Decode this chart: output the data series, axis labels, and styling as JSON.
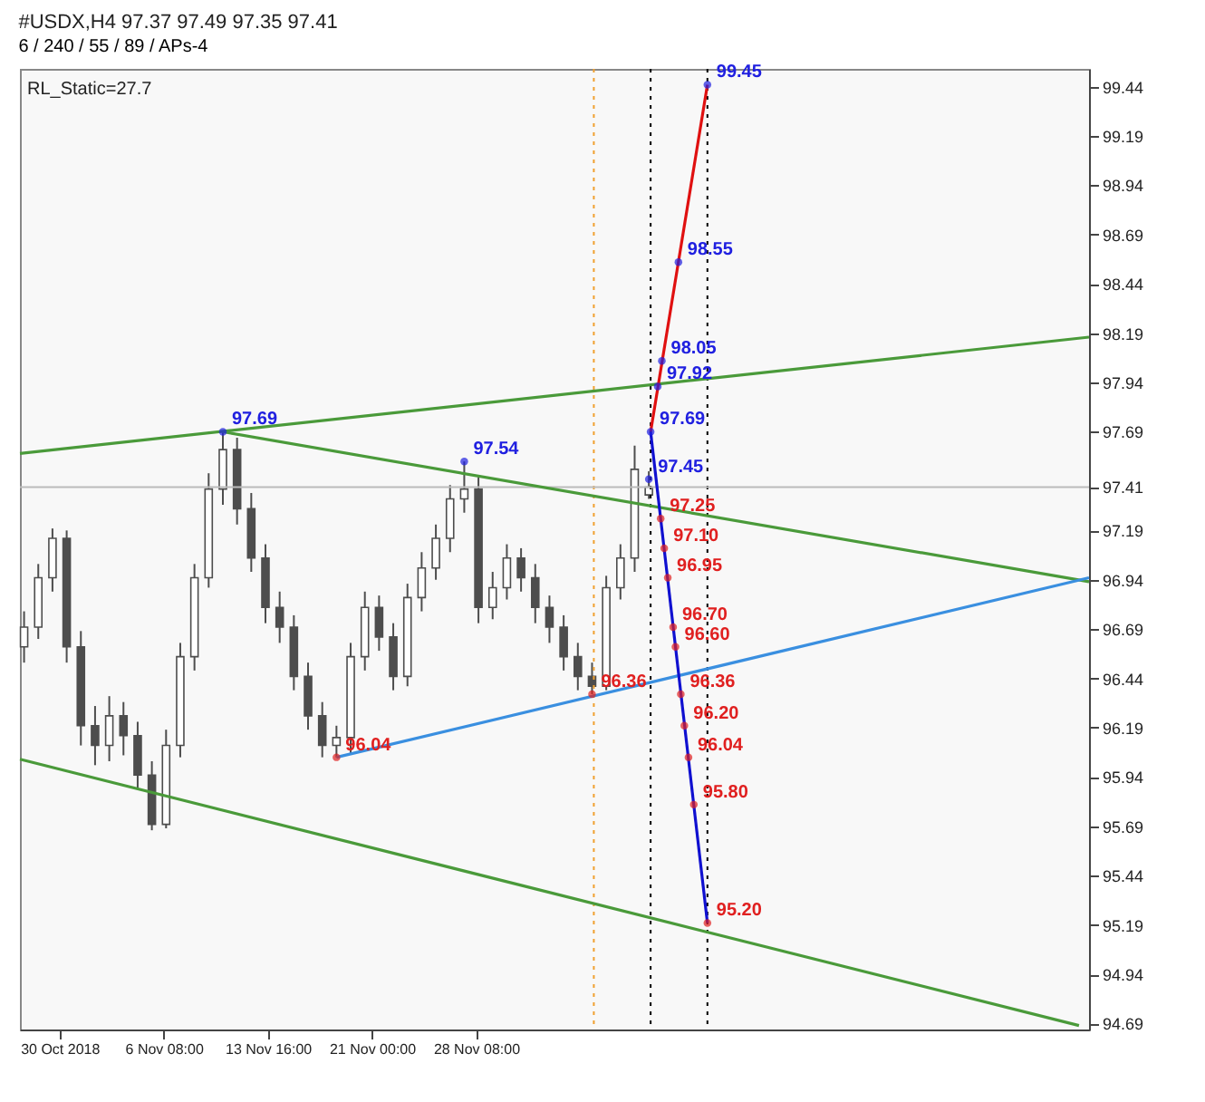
{
  "chart_data": {
    "type": "candlestick",
    "title": "#USDX,H4  97.37 97.49 97.35 97.41",
    "subtitle": "6 / 240 / 55 / 89 / APs-4",
    "annotations": [
      "RL_Static=27.7"
    ],
    "color": "#4d4d4d",
    "x": [
      "2018-10-27T12:00",
      "2018-10-28T12:00",
      "2018-10-29T12:00",
      "2018-10-30T12:00",
      "2018-10-31T12:00",
      "2018-11-01T12:00",
      "2018-11-02T12:00",
      "2018-11-03T12:00",
      "2018-11-04T12:00",
      "2018-11-05T12:00",
      "2018-11-06T12:00",
      "2018-11-07T12:00",
      "2018-11-08T12:00",
      "2018-11-09T12:00",
      "2018-11-10T12:00",
      "2018-11-11T12:00",
      "2018-11-12T12:00",
      "2018-11-13T12:00",
      "2018-11-14T12:00",
      "2018-11-15T12:00",
      "2018-11-16T12:00",
      "2018-11-17T12:00",
      "2018-11-18T12:00",
      "2018-11-19T12:00",
      "2018-11-20T12:00",
      "2018-11-21T12:00",
      "2018-11-22T12:00",
      "2018-11-23T12:00",
      "2018-11-24T12:00",
      "2018-11-25T12:00",
      "2018-11-26T12:00",
      "2018-11-27T12:00",
      "2018-11-28T12:00",
      "2018-11-29T12:00",
      "2018-11-30T12:00",
      "2018-12-01T12:00",
      "2018-12-02T12:00",
      "2018-12-03T12:00",
      "2018-12-04T12:00",
      "2018-12-05T12:00",
      "2018-12-06T12:00",
      "2018-12-07T12:00",
      "2018-12-08T12:00",
      "2018-12-09T12:00",
      "2018-12-10T12:00"
    ],
    "ohlc": [
      [
        96.6,
        96.78,
        96.52,
        96.7
      ],
      [
        96.7,
        97.02,
        96.64,
        96.95
      ],
      [
        96.95,
        97.2,
        96.88,
        97.15
      ],
      [
        97.15,
        97.19,
        96.52,
        96.6
      ],
      [
        96.6,
        96.68,
        96.1,
        96.2
      ],
      [
        96.2,
        96.3,
        96.0,
        96.1
      ],
      [
        96.1,
        96.35,
        96.02,
        96.25
      ],
      [
        96.25,
        96.32,
        96.05,
        96.15
      ],
      [
        96.15,
        96.22,
        95.88,
        95.95
      ],
      [
        95.95,
        96.02,
        95.67,
        95.7
      ],
      [
        95.7,
        96.18,
        95.68,
        96.1
      ],
      [
        96.1,
        96.62,
        96.04,
        96.55
      ],
      [
        96.55,
        97.02,
        96.48,
        96.95
      ],
      [
        96.95,
        97.48,
        96.9,
        97.4
      ],
      [
        97.4,
        97.69,
        97.32,
        97.6
      ],
      [
        97.6,
        97.66,
        97.22,
        97.3
      ],
      [
        97.3,
        97.38,
        96.98,
        97.05
      ],
      [
        97.05,
        97.12,
        96.72,
        96.8
      ],
      [
        96.8,
        96.88,
        96.62,
        96.7
      ],
      [
        96.7,
        96.76,
        96.38,
        96.45
      ],
      [
        96.45,
        96.52,
        96.18,
        96.25
      ],
      [
        96.25,
        96.32,
        96.04,
        96.1
      ],
      [
        96.1,
        96.2,
        96.04,
        96.14
      ],
      [
        96.14,
        96.62,
        96.06,
        96.55
      ],
      [
        96.55,
        96.88,
        96.48,
        96.8
      ],
      [
        96.8,
        96.86,
        96.58,
        96.65
      ],
      [
        96.65,
        96.72,
        96.38,
        96.45
      ],
      [
        96.45,
        96.92,
        96.4,
        96.85
      ],
      [
        96.85,
        97.08,
        96.78,
        97.0
      ],
      [
        97.0,
        97.22,
        96.94,
        97.15
      ],
      [
        97.15,
        97.42,
        97.08,
        97.35
      ],
      [
        97.35,
        97.54,
        97.28,
        97.4
      ],
      [
        97.4,
        97.46,
        96.72,
        96.8
      ],
      [
        96.8,
        96.98,
        96.74,
        96.9
      ],
      [
        96.9,
        97.12,
        96.84,
        97.05
      ],
      [
        97.05,
        97.1,
        96.88,
        96.95
      ],
      [
        96.95,
        97.02,
        96.72,
        96.8
      ],
      [
        96.8,
        96.86,
        96.62,
        96.7
      ],
      [
        96.7,
        96.76,
        96.48,
        96.55
      ],
      [
        96.55,
        96.62,
        96.38,
        96.45
      ],
      [
        96.45,
        96.52,
        96.36,
        96.4
      ],
      [
        96.4,
        96.96,
        96.38,
        96.9
      ],
      [
        96.9,
        97.12,
        96.84,
        97.05
      ],
      [
        97.05,
        97.62,
        96.98,
        97.5
      ],
      [
        97.37,
        97.49,
        97.35,
        97.41
      ]
    ],
    "series": [
      {
        "type": "line",
        "color": "#4a9a3a",
        "x": [
          "2018-10-27T05:00",
          "2019-01-10T12:00"
        ],
        "values": [
          97.58,
          98.17
        ]
      },
      {
        "type": "line",
        "color": "#4a9a3a",
        "x": [
          "2018-11-10T12:00",
          "2019-01-10T12:00"
        ],
        "values": [
          97.69,
          96.93
        ]
      },
      {
        "type": "line",
        "color": "#4a9a3a",
        "x": [
          "2018-10-27T05:00",
          "2019-01-09T19:00"
        ],
        "values": [
          96.03,
          94.68
        ]
      },
      {
        "type": "line",
        "color": "#3a8fe0",
        "x": [
          "2018-11-18T12:00",
          "2019-01-10T12:00"
        ],
        "values": [
          96.04,
          96.95
        ]
      },
      {
        "type": "line",
        "color": "#e01010",
        "x": [
          "2018-12-10T15:00",
          "2018-12-14T15:00"
        ],
        "values": [
          97.69,
          99.45
        ]
      },
      {
        "type": "line",
        "color": "#1010d0",
        "x": [
          "2018-12-10T15:00",
          "2018-12-14T15:00"
        ],
        "values": [
          97.69,
          95.2
        ]
      },
      {
        "type": "scatter",
        "color": "#2020e0",
        "marker": "circle",
        "x": [
          "2018-11-10T12:00",
          "2018-11-27T12:00",
          "2018-12-10T12:00",
          "2018-12-10T15:00",
          "2018-12-11T03:00",
          "2018-12-11T10:00",
          "2018-12-12T14:00",
          "2018-12-14T15:00"
        ],
        "values": [
          97.69,
          97.54,
          97.45,
          97.69,
          97.92,
          98.05,
          98.55,
          99.45
        ],
        "value_labels": [
          "97.69",
          "97.54",
          "97.45",
          "97.69",
          "97.92",
          "98.05",
          "98.55",
          "99.45"
        ]
      },
      {
        "type": "scatter",
        "color": "#e02020",
        "marker": "circle",
        "x": [
          "2018-11-18T12:00",
          "2018-12-06T12:00",
          "2018-12-11T08:00",
          "2018-12-11T14:00",
          "2018-12-11T20:00",
          "2018-12-12T05:00",
          "2018-12-12T09:00",
          "2018-12-12T18:00",
          "2018-12-13T00:00",
          "2018-12-13T07:00",
          "2018-12-13T16:00",
          "2018-12-14T15:00"
        ],
        "values": [
          96.04,
          96.36,
          97.25,
          97.1,
          96.95,
          96.7,
          96.6,
          96.36,
          96.2,
          96.04,
          95.8,
          95.2
        ],
        "value_labels": [
          "96.04",
          "96.36",
          "97.25",
          "97.10",
          "96.95",
          "96.70",
          "96.60",
          "96.36",
          "96.20",
          "96.04",
          "95.80",
          "95.20"
        ]
      }
    ],
    "ref_lines": [
      {
        "axis": "x",
        "value": "2018-12-06T15:00",
        "color": "#f0a030",
        "line_style": "dotted"
      },
      {
        "axis": "x",
        "value": "2018-12-10T15:00",
        "color": "#000000",
        "line_style": "dotted"
      },
      {
        "axis": "x",
        "value": "2018-12-14T15:00",
        "color": "#000000",
        "line_style": "dotted"
      },
      {
        "axis": "y",
        "value": 97.41,
        "color": "#bbbbbb",
        "line_style": "solid"
      }
    ],
    "xlim": [
      "2018-10-27T05:00",
      "2019-01-10T12:00"
    ],
    "xticks": [
      {
        "value": "2018-10-30",
        "label": "30 Oct 2018"
      },
      {
        "value": "2018-11-06T08:00",
        "label": "6 Nov 08:00"
      },
      {
        "value": "2018-11-13T16:00",
        "label": "13 Nov 16:00"
      },
      {
        "value": "2018-11-21",
        "label": "21 Nov 00:00"
      },
      {
        "value": "2018-11-28T08:00",
        "label": "28 Nov 08:00"
      }
    ],
    "ylim": [
      94.66,
      99.53
    ],
    "yticks": [
      94.69,
      94.94,
      95.19,
      95.44,
      95.69,
      95.94,
      96.19,
      96.44,
      96.69,
      96.94,
      97.19,
      97.41,
      97.69,
      97.94,
      98.19,
      98.44,
      98.69,
      98.94,
      99.19,
      99.44
    ]
  }
}
